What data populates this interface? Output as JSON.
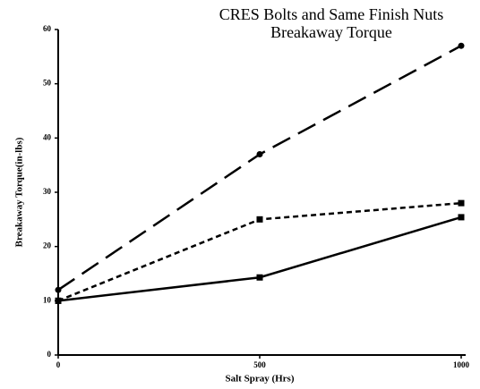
{
  "chart_data": {
    "type": "line",
    "title": "CRES Bolts and Same Finish Nuts",
    "subtitle": "Breakaway Torque",
    "x_label": "Salt Spray (Hrs)",
    "y_label": "Breakaway Torque(in-lbs)",
    "x": [
      0,
      500,
      1000
    ],
    "series": [
      {
        "color": "#000000",
        "style": "dashed",
        "marker": "circle",
        "values": [
          12,
          37,
          57
        ]
      },
      {
        "color": "#000000",
        "style": "dotted",
        "marker": "square",
        "values": [
          10,
          25,
          28
        ]
      },
      {
        "color": "#000000",
        "style": "solid",
        "marker": "square",
        "values": [
          10,
          14.3,
          25.4
        ]
      }
    ],
    "xlim": [
      0,
      1000
    ],
    "xticks": [
      0,
      500,
      1000
    ],
    "ylim": [
      0,
      60
    ],
    "yticks": [
      0,
      10,
      20,
      30,
      40,
      50,
      60
    ],
    "grid": false
  }
}
